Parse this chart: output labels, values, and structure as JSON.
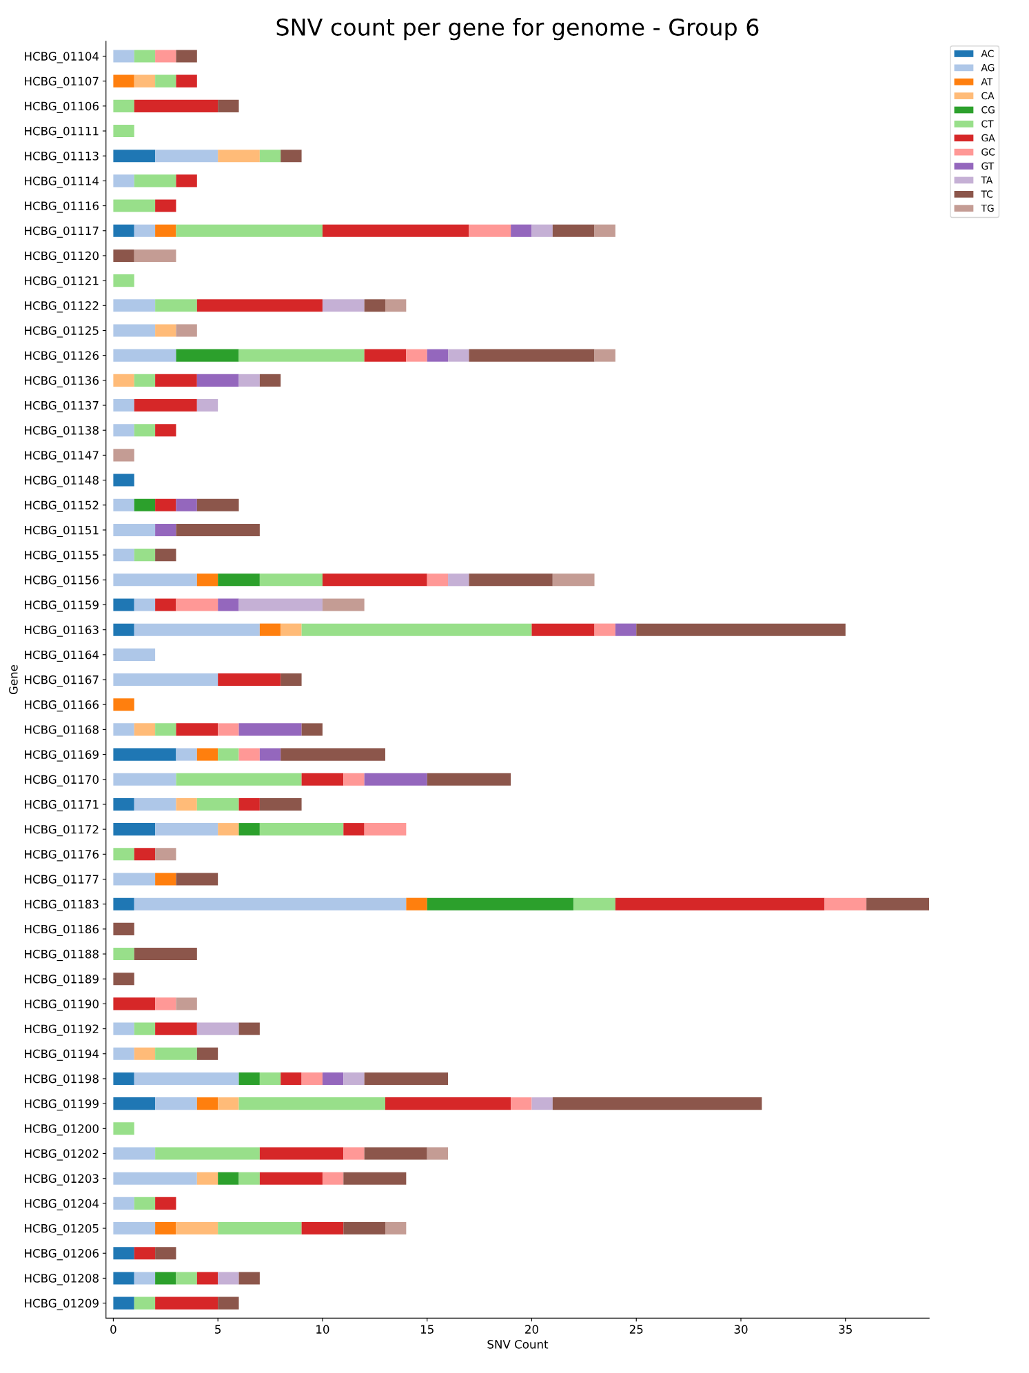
{
  "chart_data": {
    "type": "bar",
    "orientation": "horizontal",
    "stacked": true,
    "title": "SNV count per gene for genome - Group 6",
    "xlabel": "SNV Count",
    "ylabel": "Gene",
    "legend": "top right",
    "grid": false,
    "categories": [
      "HCBG_01104",
      "HCBG_01107",
      "HCBG_01106",
      "HCBG_01111",
      "HCBG_01113",
      "HCBG_01114",
      "HCBG_01116",
      "HCBG_01117",
      "HCBG_01120",
      "HCBG_01121",
      "HCBG_01122",
      "HCBG_01125",
      "HCBG_01126",
      "HCBG_01136",
      "HCBG_01137",
      "HCBG_01138",
      "HCBG_01147",
      "HCBG_01148",
      "HCBG_01152",
      "HCBG_01151",
      "HCBG_01155",
      "HCBG_01156",
      "HCBG_01159",
      "HCBG_01163",
      "HCBG_01164",
      "HCBG_01167",
      "HCBG_01166",
      "HCBG_01168",
      "HCBG_01169",
      "HCBG_01170",
      "HCBG_01171",
      "HCBG_01172",
      "HCBG_01176",
      "HCBG_01177",
      "HCBG_01183",
      "HCBG_01186",
      "HCBG_01188",
      "HCBG_01189",
      "HCBG_01190",
      "HCBG_01192",
      "HCBG_01194",
      "HCBG_01198",
      "HCBG_01199",
      "HCBG_01200",
      "HCBG_01202",
      "HCBG_01203",
      "HCBG_01204",
      "HCBG_01205",
      "HCBG_01206",
      "HCBG_01208",
      "HCBG_01209"
    ],
    "xlim": [
      -0.35,
      39
    ],
    "xticks": [
      0,
      5,
      10,
      15,
      20,
      25,
      30,
      35
    ],
    "series": [
      {
        "name": "AC",
        "color": "#1f77b4",
        "values": [
          0,
          0,
          0,
          0,
          2,
          0,
          0,
          1,
          0,
          0,
          0,
          0,
          0,
          0,
          0,
          0,
          0,
          1,
          0,
          0,
          0,
          0,
          1,
          1,
          0,
          0,
          0,
          0,
          3,
          0,
          1,
          2,
          0,
          0,
          1,
          0,
          0,
          0,
          0,
          0,
          0,
          1,
          2,
          0,
          0,
          0,
          0,
          0,
          1,
          1,
          1
        ]
      },
      {
        "name": "AG",
        "color": "#aec7e8",
        "values": [
          1,
          0,
          0,
          0,
          3,
          1,
          0,
          1,
          0,
          0,
          2,
          2,
          3,
          0,
          1,
          1,
          0,
          0,
          1,
          2,
          1,
          4,
          1,
          6,
          2,
          5,
          0,
          1,
          1,
          3,
          2,
          3,
          0,
          2,
          13,
          0,
          0,
          0,
          0,
          1,
          1,
          5,
          2,
          0,
          2,
          4,
          1,
          2,
          0,
          1,
          0
        ]
      },
      {
        "name": "AT",
        "color": "#ff7f0e",
        "values": [
          0,
          1,
          0,
          0,
          0,
          0,
          0,
          1,
          0,
          0,
          0,
          0,
          0,
          0,
          0,
          0,
          0,
          0,
          0,
          0,
          0,
          1,
          0,
          1,
          0,
          0,
          1,
          0,
          1,
          0,
          0,
          0,
          0,
          1,
          1,
          0,
          0,
          0,
          0,
          0,
          0,
          0,
          1,
          0,
          0,
          0,
          0,
          1,
          0,
          0,
          0
        ]
      },
      {
        "name": "CA",
        "color": "#ffbb78",
        "values": [
          0,
          1,
          0,
          0,
          2,
          0,
          0,
          0,
          0,
          0,
          0,
          1,
          0,
          1,
          0,
          0,
          0,
          0,
          0,
          0,
          0,
          0,
          0,
          1,
          0,
          0,
          0,
          1,
          0,
          0,
          1,
          1,
          0,
          0,
          0,
          0,
          0,
          0,
          0,
          0,
          1,
          0,
          1,
          0,
          0,
          1,
          0,
          2,
          0,
          0,
          0
        ]
      },
      {
        "name": "CG",
        "color": "#2ca02c",
        "values": [
          0,
          0,
          0,
          0,
          0,
          0,
          0,
          0,
          0,
          0,
          0,
          0,
          3,
          0,
          0,
          0,
          0,
          0,
          1,
          0,
          0,
          2,
          0,
          0,
          0,
          0,
          0,
          0,
          0,
          0,
          0,
          1,
          0,
          0,
          7,
          0,
          0,
          0,
          0,
          0,
          0,
          1,
          0,
          0,
          0,
          1,
          0,
          0,
          0,
          1,
          0
        ]
      },
      {
        "name": "CT",
        "color": "#98df8a",
        "values": [
          1,
          1,
          1,
          1,
          1,
          2,
          2,
          7,
          0,
          1,
          2,
          0,
          6,
          1,
          0,
          1,
          0,
          0,
          0,
          0,
          1,
          3,
          0,
          11,
          0,
          0,
          0,
          1,
          1,
          6,
          2,
          4,
          1,
          0,
          2,
          0,
          1,
          0,
          0,
          1,
          2,
          1,
          7,
          1,
          5,
          1,
          1,
          4,
          0,
          1,
          1
        ]
      },
      {
        "name": "GA",
        "color": "#d62728",
        "values": [
          0,
          1,
          4,
          0,
          0,
          1,
          1,
          7,
          0,
          0,
          6,
          0,
          2,
          2,
          3,
          1,
          0,
          0,
          1,
          0,
          0,
          5,
          1,
          3,
          0,
          3,
          0,
          2,
          0,
          2,
          1,
          1,
          1,
          0,
          10,
          0,
          0,
          0,
          2,
          2,
          0,
          1,
          6,
          0,
          4,
          3,
          1,
          2,
          1,
          1,
          3
        ]
      },
      {
        "name": "GC",
        "color": "#ff9896",
        "values": [
          1,
          0,
          0,
          0,
          0,
          0,
          0,
          2,
          0,
          0,
          0,
          0,
          1,
          0,
          0,
          0,
          0,
          0,
          0,
          0,
          0,
          1,
          2,
          1,
          0,
          0,
          0,
          1,
          1,
          1,
          0,
          2,
          0,
          0,
          2,
          0,
          0,
          0,
          1,
          0,
          0,
          1,
          1,
          0,
          1,
          1,
          0,
          0,
          0,
          0,
          0
        ]
      },
      {
        "name": "GT",
        "color": "#9467bd",
        "values": [
          0,
          0,
          0,
          0,
          0,
          0,
          0,
          1,
          0,
          0,
          0,
          0,
          1,
          2,
          0,
          0,
          0,
          0,
          1,
          1,
          0,
          0,
          1,
          1,
          0,
          0,
          0,
          3,
          1,
          3,
          0,
          0,
          0,
          0,
          0,
          0,
          0,
          0,
          0,
          0,
          0,
          1,
          0,
          0,
          0,
          0,
          0,
          0,
          0,
          0,
          0
        ]
      },
      {
        "name": "TA",
        "color": "#c5b0d5",
        "values": [
          0,
          0,
          0,
          0,
          0,
          0,
          0,
          1,
          0,
          0,
          2,
          0,
          1,
          1,
          1,
          0,
          0,
          0,
          0,
          0,
          0,
          1,
          4,
          0,
          0,
          0,
          0,
          0,
          0,
          0,
          0,
          0,
          0,
          0,
          0,
          0,
          0,
          0,
          0,
          2,
          0,
          1,
          1,
          0,
          0,
          0,
          0,
          0,
          0,
          1,
          0
        ]
      },
      {
        "name": "TC",
        "color": "#8c564b",
        "values": [
          1,
          0,
          1,
          0,
          1,
          0,
          0,
          2,
          1,
          0,
          1,
          0,
          6,
          1,
          0,
          0,
          0,
          0,
          2,
          4,
          1,
          4,
          0,
          10,
          0,
          1,
          0,
          1,
          5,
          4,
          2,
          0,
          0,
          2,
          3,
          1,
          3,
          1,
          0,
          1,
          1,
          4,
          10,
          0,
          3,
          3,
          0,
          2,
          1,
          1,
          1
        ]
      },
      {
        "name": "TG",
        "color": "#c49c94",
        "values": [
          0,
          0,
          0,
          0,
          0,
          0,
          0,
          1,
          2,
          0,
          1,
          1,
          1,
          0,
          0,
          0,
          1,
          0,
          0,
          0,
          0,
          2,
          2,
          0,
          0,
          0,
          0,
          0,
          0,
          0,
          0,
          0,
          1,
          0,
          0,
          0,
          0,
          0,
          1,
          0,
          0,
          0,
          0,
          0,
          1,
          0,
          0,
          1,
          0,
          0,
          0
        ]
      }
    ]
  }
}
